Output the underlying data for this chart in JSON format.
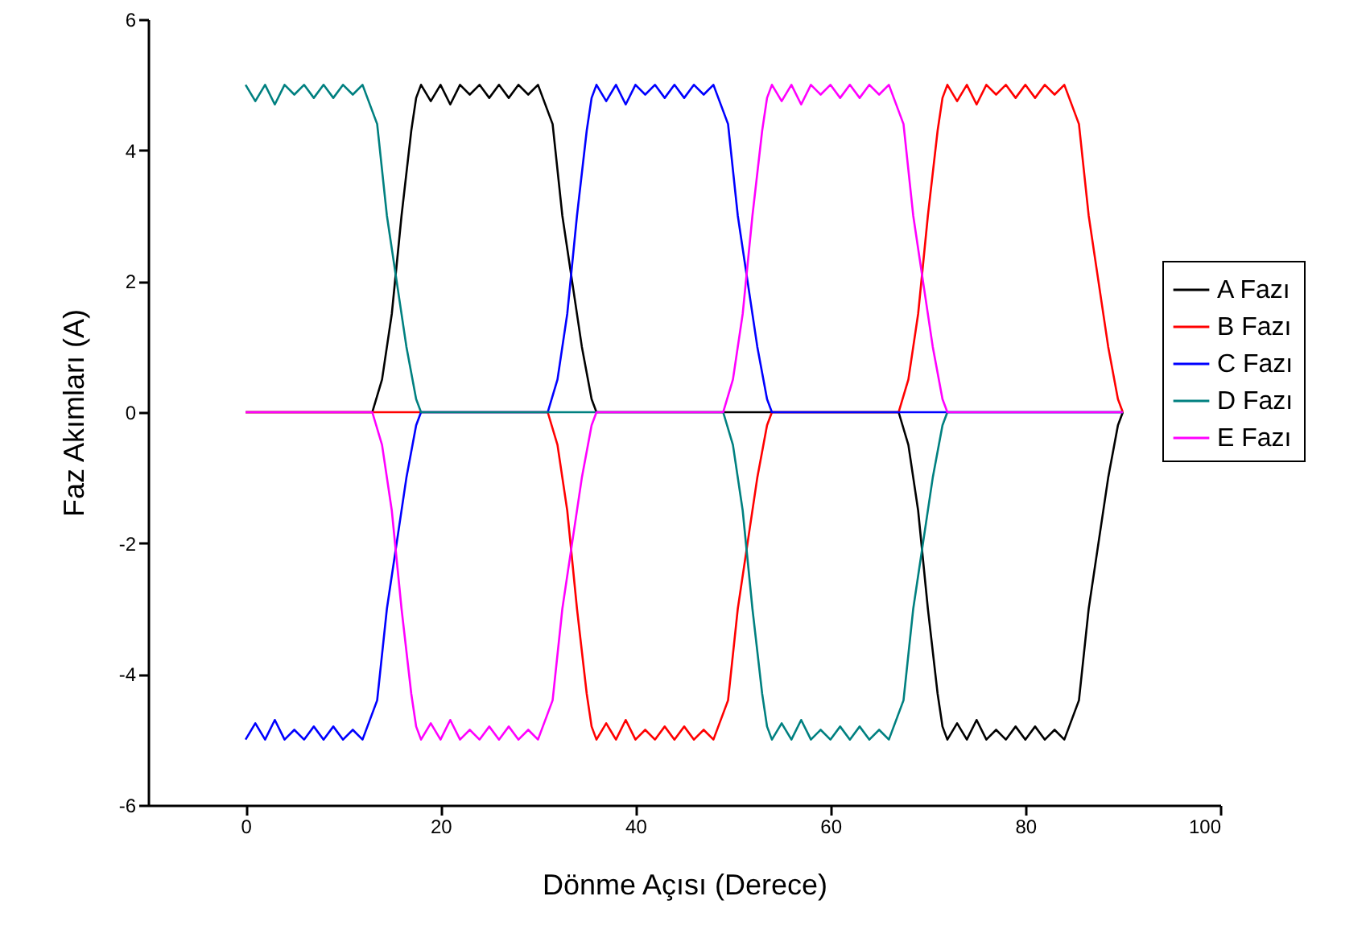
{
  "chart_data": {
    "type": "line",
    "xlabel": "Dönme Açısı (Derece)",
    "ylabel": "Faz Akımları (A)",
    "xlim": [
      -10,
      100
    ],
    "xticks": [
      0,
      20,
      40,
      60,
      80,
      100
    ],
    "ylim": [
      -6,
      6
    ],
    "yticks": [
      -6,
      -4,
      -2,
      0,
      2,
      4,
      6
    ],
    "grid": false,
    "legend": "right",
    "marker": "none",
    "line_style": "solid",
    "series": [
      {
        "name": "A Fazı",
        "color": "#000000",
        "x": [
          0,
          13,
          14,
          15,
          16,
          17,
          17.5,
          18,
          19,
          20,
          21,
          22,
          23,
          24,
          25,
          26,
          27,
          28,
          29,
          30,
          30.5,
          31.5,
          32.5,
          33.5,
          34.5,
          35.5,
          36,
          67,
          68,
          69,
          70,
          71,
          71.5,
          72,
          73,
          74,
          75,
          76,
          77,
          78,
          79,
          80,
          81,
          82,
          83,
          84,
          84.5,
          85.5,
          86.5,
          87.5,
          88.5,
          89.5,
          90
        ],
        "values": [
          0,
          0,
          0.5,
          1.5,
          3.0,
          4.3,
          4.8,
          5,
          4.75,
          5,
          4.7,
          5,
          4.85,
          5,
          4.8,
          5,
          4.8,
          5,
          4.85,
          5,
          4.8,
          4.4,
          3.0,
          2.0,
          1.0,
          0.2,
          0,
          0,
          -0.5,
          -1.5,
          -3.0,
          -4.3,
          -4.8,
          -5,
          -4.75,
          -5,
          -4.7,
          -5,
          -4.85,
          -5,
          -4.8,
          -5,
          -4.8,
          -5,
          -4.85,
          -5,
          -4.8,
          -4.4,
          -3.0,
          -2.0,
          -1.0,
          -0.2,
          0
        ]
      },
      {
        "name": "B Fazı",
        "color": "#ff0000",
        "x": [
          0,
          31,
          32,
          33,
          34,
          35,
          35.5,
          36,
          37,
          38,
          39,
          40,
          41,
          42,
          43,
          44,
          45,
          46,
          47,
          48,
          48.5,
          49.5,
          50.5,
          51.5,
          52.5,
          53.5,
          54,
          67,
          68,
          69,
          70,
          71,
          71.5,
          72,
          73,
          74,
          75,
          76,
          77,
          78,
          79,
          80,
          81,
          82,
          83,
          84,
          84.5,
          85.5,
          86.5,
          87.5,
          88.5,
          89.5,
          90
        ],
        "values": [
          0,
          0,
          -0.5,
          -1.5,
          -3.0,
          -4.3,
          -4.8,
          -5,
          -4.75,
          -5,
          -4.7,
          -5,
          -4.85,
          -5,
          -4.8,
          -5,
          -4.8,
          -5,
          -4.85,
          -5,
          -4.8,
          -4.4,
          -3.0,
          -2.0,
          -1.0,
          -0.2,
          0,
          0,
          0.5,
          1.5,
          3.0,
          4.3,
          4.8,
          5,
          4.75,
          5,
          4.7,
          5,
          4.85,
          5,
          4.8,
          5,
          4.8,
          5,
          4.85,
          5,
          4.8,
          4.4,
          3.0,
          2.0,
          1.0,
          0.2,
          0
        ]
      },
      {
        "name": "C Fazı",
        "color": "#0000ff",
        "x": [
          0,
          1,
          2,
          3,
          4,
          5,
          6,
          7,
          8,
          9,
          10,
          11,
          12,
          12.5,
          13.5,
          14.5,
          15.5,
          16.5,
          17.5,
          18,
          31,
          32,
          33,
          34,
          35,
          35.5,
          36,
          37,
          38,
          39,
          40,
          41,
          42,
          43,
          44,
          45,
          46,
          47,
          48,
          48.5,
          49.5,
          50.5,
          51.5,
          52.5,
          53.5,
          54,
          90
        ],
        "values": [
          -5,
          -4.75,
          -5,
          -4.7,
          -5,
          -4.85,
          -5,
          -4.8,
          -5,
          -4.8,
          -5,
          -4.85,
          -5,
          -4.8,
          -4.4,
          -3.0,
          -2.0,
          -1.0,
          -0.2,
          0,
          0,
          0.5,
          1.5,
          3.0,
          4.3,
          4.8,
          5,
          4.75,
          5,
          4.7,
          5,
          4.85,
          5,
          4.8,
          5,
          4.8,
          5,
          4.85,
          5,
          4.8,
          4.4,
          3.0,
          2.0,
          1.0,
          0.2,
          0,
          0
        ]
      },
      {
        "name": "D Fazı",
        "color": "#008080",
        "x": [
          0,
          1,
          2,
          3,
          4,
          5,
          6,
          7,
          8,
          9,
          10,
          11,
          12,
          12.5,
          13.5,
          14.5,
          15.5,
          16.5,
          17.5,
          18,
          49,
          50,
          51,
          52,
          53,
          53.5,
          54,
          55,
          56,
          57,
          58,
          59,
          60,
          61,
          62,
          63,
          64,
          65,
          66,
          66.5,
          67.5,
          68.5,
          69.5,
          70.5,
          71.5,
          72,
          90
        ],
        "values": [
          5,
          4.75,
          5,
          4.7,
          5,
          4.85,
          5,
          4.8,
          5,
          4.8,
          5,
          4.85,
          5,
          4.8,
          4.4,
          3.0,
          2.0,
          1.0,
          0.2,
          0,
          0,
          -0.5,
          -1.5,
          -3.0,
          -4.3,
          -4.8,
          -5,
          -4.75,
          -5,
          -4.7,
          -5,
          -4.85,
          -5,
          -4.8,
          -5,
          -4.8,
          -5,
          -4.85,
          -5,
          -4.8,
          -4.4,
          -3.0,
          -2.0,
          -1.0,
          -0.2,
          0,
          0
        ]
      },
      {
        "name": "E Fazı",
        "color": "#ff00ff",
        "x": [
          0,
          13,
          14,
          15,
          16,
          17,
          17.5,
          18,
          19,
          20,
          21,
          22,
          23,
          24,
          25,
          26,
          27,
          28,
          29,
          30,
          30.5,
          31.5,
          32.5,
          33.5,
          34.5,
          35.5,
          36,
          49,
          50,
          51,
          52,
          53,
          53.5,
          54,
          55,
          56,
          57,
          58,
          59,
          60,
          61,
          62,
          63,
          64,
          65,
          66,
          66.5,
          67.5,
          68.5,
          69.5,
          70.5,
          71.5,
          72,
          90
        ],
        "values": [
          0,
          0,
          -0.5,
          -1.5,
          -3.0,
          -4.3,
          -4.8,
          -5,
          -4.75,
          -5,
          -4.7,
          -5,
          -4.85,
          -5,
          -4.8,
          -5,
          -4.8,
          -5,
          -4.85,
          -5,
          -4.8,
          -4.4,
          -3.0,
          -2.0,
          -1.0,
          -0.2,
          0,
          0,
          0.5,
          1.5,
          3.0,
          4.3,
          4.8,
          5,
          4.75,
          5,
          4.7,
          5,
          4.85,
          5,
          4.8,
          5,
          4.8,
          5,
          4.85,
          5,
          4.8,
          4.4,
          3.0,
          2.0,
          1.0,
          0.2,
          0,
          0
        ]
      }
    ]
  }
}
